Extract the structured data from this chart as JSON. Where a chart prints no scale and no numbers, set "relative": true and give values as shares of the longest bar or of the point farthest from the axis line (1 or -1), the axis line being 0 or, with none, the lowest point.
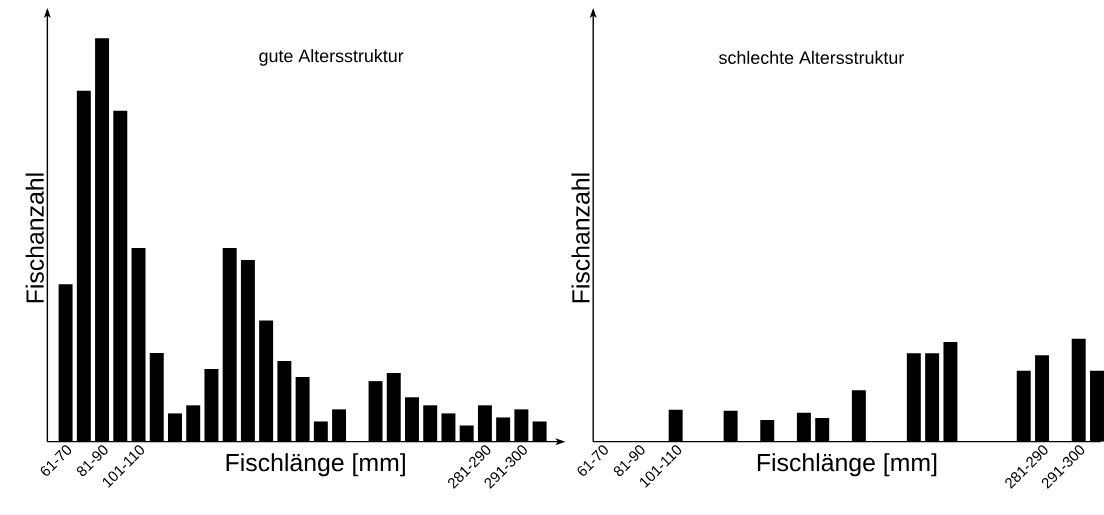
{
  "chart_data": [
    {
      "type": "bar",
      "title": "gute Altersstruktur",
      "xlabel": "Fischlänge [mm]",
      "ylabel": "Fischanzahl",
      "relative": true,
      "color": "#000000",
      "categories": [
        "61-70",
        null,
        "81-90",
        null,
        "101-110",
        null,
        null,
        null,
        null,
        null,
        null,
        null,
        null,
        null,
        null,
        null,
        null,
        null,
        null,
        null,
        null,
        null,
        null,
        "281-290",
        null,
        "291-300",
        null
      ],
      "values": [
        0.39,
        0.87,
        1,
        0.82,
        0.48,
        0.22,
        0.07,
        0.09,
        0.18,
        0.48,
        0.45,
        0.3,
        0.2,
        0.16,
        0.05,
        0.08,
        0,
        0.15,
        0.17,
        0.11,
        0.09,
        0.07,
        0.04,
        0.09,
        0.06,
        0.08,
        0.05
      ]
    },
    {
      "type": "bar",
      "title": "schlechte Altersstruktur",
      "xlabel": "Fischlänge [mm]",
      "ylabel": "Fischanzahl",
      "relative": true,
      "color": "#000000",
      "categories": [
        "61-70",
        null,
        "81-90",
        null,
        "101-110",
        null,
        null,
        null,
        null,
        null,
        null,
        null,
        null,
        null,
        null,
        null,
        null,
        null,
        null,
        null,
        null,
        null,
        null,
        null,
        "281-290",
        null,
        "291-300",
        null
      ],
      "values": [
        0,
        0,
        0,
        0,
        0.31,
        0,
        0,
        0.3,
        0,
        0.21,
        0,
        0.28,
        0.23,
        0,
        0.5,
        0,
        0,
        0.86,
        0.86,
        0.97,
        0,
        0,
        0,
        0.69,
        0.84,
        0,
        1,
        0.69
      ]
    }
  ]
}
